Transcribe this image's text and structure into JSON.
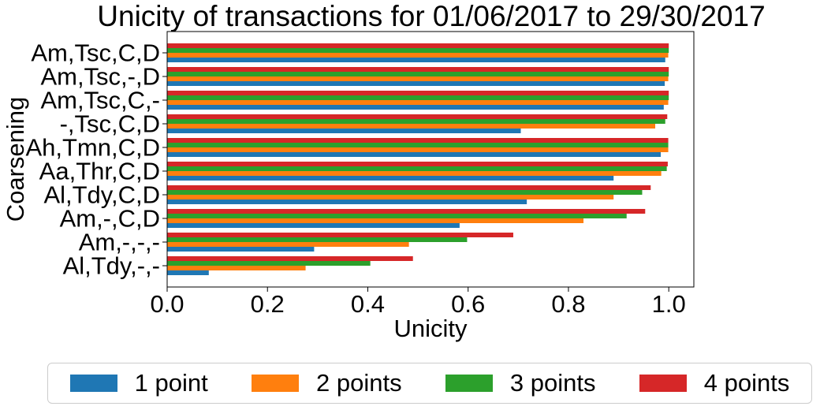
{
  "chart_data": {
    "type": "bar",
    "orientation": "horizontal",
    "title": "Unicity of transactions for 01/06/2017 to 29/30/2017",
    "xlabel": "Unicity",
    "ylabel": "Coarsening",
    "xlim": [
      0,
      1.05
    ],
    "xticks": [
      "0.0",
      "0.2",
      "0.4",
      "0.6",
      "0.8",
      "1.0"
    ],
    "grid": false,
    "legend_position": "bottom",
    "categories": [
      "Am,Tsc,C,D",
      "Am,Tsc,-,D",
      "Am,Tsc,C,-",
      "-,Tsc,C,D",
      "Ah,Tmn,C,D",
      "Aa,Thr,C,D",
      "Al,Tdy,C,D",
      "Am,-,C,D",
      "Am,-,-,-",
      "Al,Tdy,-,-"
    ],
    "series": [
      {
        "name": "1 point",
        "color": "#1f77b4",
        "values": [
          0.993,
          0.992,
          0.99,
          0.705,
          0.984,
          0.89,
          0.717,
          0.583,
          0.293,
          0.083
        ]
      },
      {
        "name": "2 points",
        "color": "#ff7f0e",
        "values": [
          0.999,
          0.999,
          0.999,
          0.973,
          0.999,
          0.985,
          0.89,
          0.83,
          0.482,
          0.276
        ]
      },
      {
        "name": "3 points",
        "color": "#2ca02c",
        "values": [
          1.0,
          1.0,
          1.0,
          0.993,
          0.999,
          0.996,
          0.947,
          0.916,
          0.598,
          0.405
        ]
      },
      {
        "name": "4 points",
        "color": "#d62728",
        "values": [
          1.0,
          1.0,
          1.0,
          0.997,
          0.999,
          0.998,
          0.964,
          0.953,
          0.69,
          0.49
        ]
      }
    ]
  }
}
